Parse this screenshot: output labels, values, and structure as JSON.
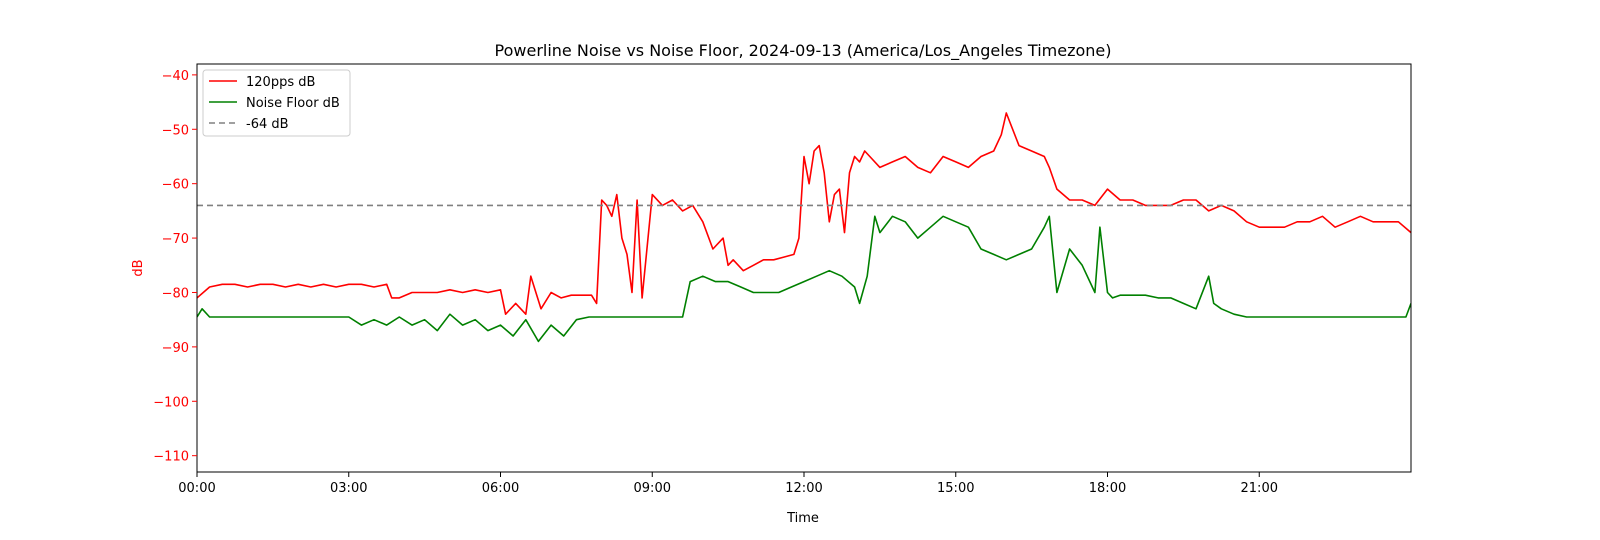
{
  "chart_data": {
    "type": "line",
    "title": "Powerline Noise vs Noise Floor, 2024-09-13 (America/Los_Angeles Timezone)",
    "xlabel": "Time",
    "ylabel": "dB",
    "xlim_hours": [
      0,
      24
    ],
    "ylim": [
      -113,
      -38
    ],
    "x_ticks": [
      {
        "hour": 0,
        "label": "00:00"
      },
      {
        "hour": 3,
        "label": "03:00"
      },
      {
        "hour": 6,
        "label": "06:00"
      },
      {
        "hour": 9,
        "label": "09:00"
      },
      {
        "hour": 12,
        "label": "12:00"
      },
      {
        "hour": 15,
        "label": "15:00"
      },
      {
        "hour": 18,
        "label": "18:00"
      },
      {
        "hour": 21,
        "label": "21:00"
      }
    ],
    "y_ticks": [
      {
        "value": -40,
        "label": "−40"
      },
      {
        "value": -50,
        "label": "−50"
      },
      {
        "value": -60,
        "label": "−60"
      },
      {
        "value": -70,
        "label": "−70"
      },
      {
        "value": -80,
        "label": "−80"
      },
      {
        "value": -90,
        "label": "−90"
      },
      {
        "value": -100,
        "label": "−100"
      },
      {
        "value": -110,
        "label": "−110"
      }
    ],
    "grid": false,
    "legend_position": "top-left",
    "ylabel_color": "#ff0000",
    "series": [
      {
        "name": "120pps dB",
        "color": "#ff0000",
        "style": "solid",
        "x_hours": [
          0,
          0.25,
          0.5,
          0.75,
          1.0,
          1.25,
          1.5,
          1.75,
          2.0,
          2.25,
          2.5,
          2.75,
          3.0,
          3.25,
          3.5,
          3.75,
          3.85,
          4.0,
          4.25,
          4.5,
          4.75,
          5.0,
          5.25,
          5.5,
          5.75,
          6.0,
          6.1,
          6.3,
          6.5,
          6.6,
          6.8,
          7.0,
          7.2,
          7.4,
          7.6,
          7.8,
          7.9,
          8.0,
          8.1,
          8.2,
          8.3,
          8.4,
          8.5,
          8.6,
          8.7,
          8.8,
          9.0,
          9.2,
          9.4,
          9.6,
          9.8,
          10.0,
          10.2,
          10.4,
          10.5,
          10.6,
          10.8,
          11.0,
          11.2,
          11.4,
          11.6,
          11.8,
          11.9,
          12.0,
          12.1,
          12.2,
          12.3,
          12.4,
          12.5,
          12.6,
          12.7,
          12.8,
          12.9,
          13.0,
          13.1,
          13.2,
          13.3,
          13.5,
          13.75,
          14.0,
          14.25,
          14.5,
          14.75,
          15.0,
          15.25,
          15.5,
          15.75,
          15.9,
          16.0,
          16.25,
          16.5,
          16.75,
          16.85,
          17.0,
          17.25,
          17.5,
          17.75,
          18.0,
          18.25,
          18.5,
          18.75,
          19.0,
          19.25,
          19.5,
          19.75,
          20.0,
          20.25,
          20.5,
          20.75,
          21.0,
          21.25,
          21.5,
          21.75,
          22.0,
          22.25,
          22.5,
          22.75,
          23.0,
          23.25,
          23.5,
          23.75,
          24.0
        ],
        "values": [
          -81,
          -79,
          -78.5,
          -78.5,
          -79,
          -78.5,
          -78.5,
          -79,
          -78.5,
          -79,
          -78.5,
          -79,
          -78.5,
          -78.5,
          -79,
          -78.5,
          -81,
          -81,
          -80,
          -80,
          -80,
          -79.5,
          -80,
          -79.5,
          -80,
          -79.5,
          -84,
          -82,
          -84,
          -77,
          -83,
          -80,
          -81,
          -80.5,
          -80.5,
          -80.5,
          -82,
          -63,
          -64,
          -66,
          -62,
          -70,
          -73,
          -80,
          -63,
          -81,
          -62,
          -64,
          -63,
          -65,
          -64,
          -67,
          -72,
          -70,
          -75,
          -74,
          -76,
          -75,
          -74,
          -74,
          -73.5,
          -73,
          -70,
          -55,
          -60,
          -54,
          -53,
          -58,
          -67,
          -62,
          -61,
          -69,
          -58,
          -55,
          -56,
          -54,
          -55,
          -57,
          -56,
          -55,
          -57,
          -58,
          -55,
          -56,
          -57,
          -55,
          -54,
          -51,
          -47,
          -53,
          -54,
          -55,
          -57,
          -61,
          -63,
          -63,
          -64,
          -61,
          -63,
          -63,
          -64,
          -64,
          -64,
          -63,
          -63,
          -65,
          -64,
          -65,
          -67,
          -68,
          -68,
          -68,
          -67,
          -67,
          -66,
          -68,
          -67,
          -66,
          -67,
          -67,
          -67,
          -69
        ]
      },
      {
        "name": "Noise Floor dB",
        "color": "#008000",
        "style": "solid",
        "x_hours": [
          0,
          0.1,
          0.25,
          0.5,
          0.75,
          1.0,
          1.25,
          1.5,
          1.75,
          2.0,
          2.25,
          2.5,
          2.75,
          3.0,
          3.25,
          3.5,
          3.75,
          4.0,
          4.25,
          4.5,
          4.75,
          5.0,
          5.25,
          5.5,
          5.75,
          6.0,
          6.25,
          6.5,
          6.75,
          7.0,
          7.25,
          7.5,
          7.75,
          8.0,
          8.25,
          8.5,
          8.75,
          9.0,
          9.25,
          9.5,
          9.6,
          9.75,
          10.0,
          10.25,
          10.5,
          10.75,
          11.0,
          11.25,
          11.5,
          11.75,
          12.0,
          12.25,
          12.5,
          12.75,
          13.0,
          13.1,
          13.25,
          13.4,
          13.5,
          13.75,
          14.0,
          14.25,
          14.5,
          14.75,
          15.0,
          15.25,
          15.5,
          15.75,
          16.0,
          16.25,
          16.5,
          16.75,
          16.85,
          17.0,
          17.25,
          17.5,
          17.75,
          17.85,
          18.0,
          18.1,
          18.25,
          18.5,
          18.75,
          19.0,
          19.25,
          19.5,
          19.75,
          20.0,
          20.1,
          20.25,
          20.5,
          20.75,
          21.0,
          21.5,
          22.0,
          22.5,
          23.0,
          23.5,
          23.9,
          24.0
        ],
        "values": [
          -84.5,
          -83,
          -84.5,
          -84.5,
          -84.5,
          -84.5,
          -84.5,
          -84.5,
          -84.5,
          -84.5,
          -84.5,
          -84.5,
          -84.5,
          -84.5,
          -86,
          -85,
          -86,
          -84.5,
          -86,
          -85,
          -87,
          -84,
          -86,
          -85,
          -87,
          -86,
          -88,
          -85,
          -89,
          -86,
          -88,
          -85,
          -84.5,
          -84.5,
          -84.5,
          -84.5,
          -84.5,
          -84.5,
          -84.5,
          -84.5,
          -84.5,
          -78,
          -77,
          -78,
          -78,
          -79,
          -80,
          -80,
          -80,
          -79,
          -78,
          -77,
          -76,
          -77,
          -79,
          -82,
          -77,
          -66,
          -69,
          -66,
          -67,
          -70,
          -68,
          -66,
          -67,
          -68,
          -72,
          -73,
          -74,
          -73,
          -72,
          -68,
          -66,
          -80,
          -72,
          -75,
          -80,
          -68,
          -80,
          -81,
          -80.5,
          -80.5,
          -80.5,
          -81,
          -81,
          -82,
          -83,
          -77,
          -82,
          -83,
          -84,
          -84.5,
          -84.5,
          -84.5,
          -84.5,
          -84.5,
          -84.5,
          -84.5,
          -84.5,
          -82
        ]
      },
      {
        "name": "-64 dB",
        "color": "#808080",
        "style": "dashed",
        "x_hours": [
          0,
          24
        ],
        "values": [
          -64,
          -64
        ]
      }
    ]
  }
}
